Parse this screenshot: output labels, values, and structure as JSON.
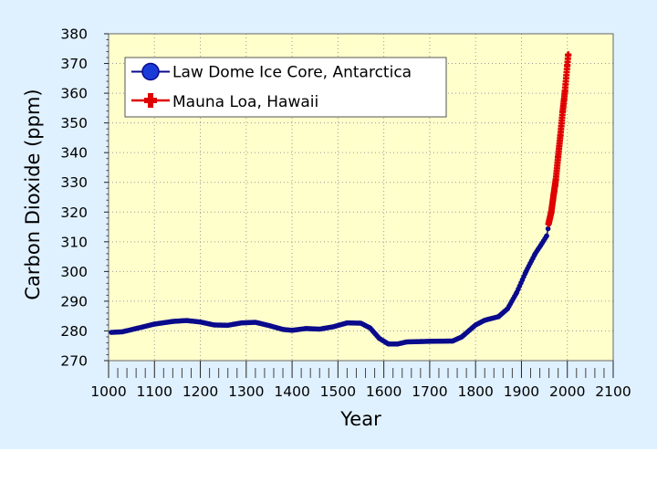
{
  "chart_data": {
    "type": "scatter",
    "title": "",
    "xlabel": "Year",
    "ylabel": "Carbon Dioxide (ppm)",
    "xlim": [
      1000,
      2100
    ],
    "ylim": [
      270,
      380
    ],
    "x_ticks": [
      1000,
      1100,
      1200,
      1300,
      1400,
      1500,
      1600,
      1700,
      1800,
      1900,
      2000,
      2100
    ],
    "y_ticks": [
      270,
      280,
      290,
      300,
      310,
      320,
      330,
      340,
      350,
      360,
      370,
      380
    ],
    "grid": true,
    "legend_position": "top-left",
    "series": [
      {
        "name": "Law Dome Ice Core, Antarctica",
        "color": "#0a0a8c",
        "marker": "circle",
        "anchors": [
          [
            1006,
            279.5
          ],
          [
            1030,
            279.7
          ],
          [
            1060,
            280.8
          ],
          [
            1100,
            282.3
          ],
          [
            1140,
            283.2
          ],
          [
            1170,
            283.5
          ],
          [
            1200,
            283.0
          ],
          [
            1230,
            282.0
          ],
          [
            1260,
            281.9
          ],
          [
            1290,
            282.7
          ],
          [
            1320,
            282.9
          ],
          [
            1350,
            281.8
          ],
          [
            1380,
            280.5
          ],
          [
            1400,
            280.2
          ],
          [
            1430,
            280.8
          ],
          [
            1460,
            280.6
          ],
          [
            1490,
            281.4
          ],
          [
            1520,
            282.7
          ],
          [
            1550,
            282.6
          ],
          [
            1570,
            281.0
          ],
          [
            1590,
            277.5
          ],
          [
            1610,
            275.6
          ],
          [
            1630,
            275.6
          ],
          [
            1650,
            276.3
          ],
          [
            1700,
            276.5
          ],
          [
            1750,
            276.6
          ],
          [
            1770,
            278.0
          ],
          [
            1800,
            282.0
          ],
          [
            1820,
            283.6
          ],
          [
            1850,
            284.8
          ],
          [
            1870,
            287.5
          ],
          [
            1890,
            293.0
          ],
          [
            1910,
            300.0
          ],
          [
            1930,
            306.0
          ],
          [
            1945,
            309.5
          ],
          [
            1955,
            312.0
          ],
          [
            1960,
            316.0
          ],
          [
            1965,
            320.0
          ],
          [
            1970,
            324.0
          ],
          [
            1975,
            329.0
          ]
        ],
        "step": 3
      },
      {
        "name": "Mauna Loa, Hawaii",
        "color": "#e00000",
        "marker": "plus",
        "anchors": [
          [
            1959,
            316.0
          ],
          [
            1965,
            320.0
          ],
          [
            1970,
            325.7
          ],
          [
            1975,
            331.0
          ],
          [
            1980,
            338.7
          ],
          [
            1985,
            346.0
          ],
          [
            1990,
            354.0
          ],
          [
            1995,
            360.9
          ],
          [
            2000,
            369.5
          ],
          [
            2002,
            373.0
          ]
        ],
        "step": 0.6
      }
    ]
  }
}
